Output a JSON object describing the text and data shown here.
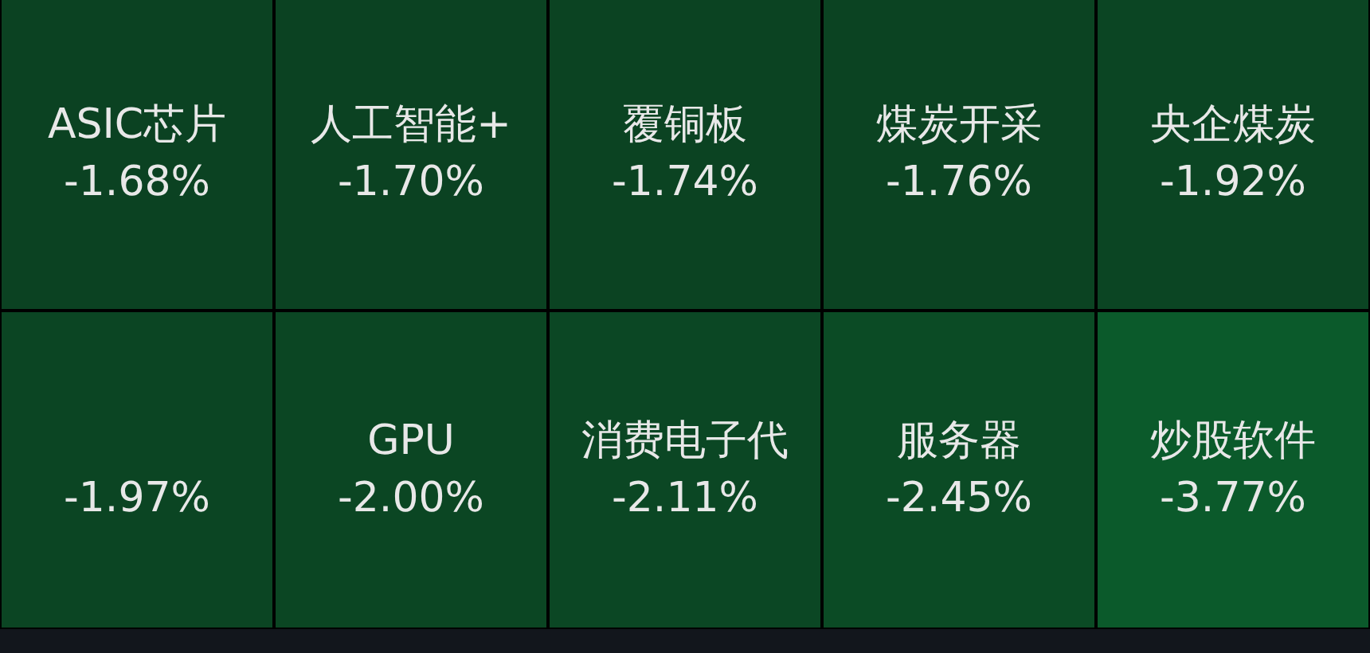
{
  "chart_data": {
    "type": "other",
    "categories": [
      "ASIC芯片",
      "人工智能+",
      "覆铜板",
      "煤炭开采",
      "央企煤炭",
      null,
      "GPU",
      "消费电子代",
      "服务器",
      "炒股软件"
    ],
    "values": [
      -1.68,
      -1.7,
      -1.74,
      -1.76,
      -1.92,
      -1.97,
      -2.0,
      -2.11,
      -2.45,
      -3.77
    ],
    "value_labels": [
      "-1.68%",
      "-1.70%",
      "-1.74%",
      "-1.76%",
      "-1.92%",
      "-1.97%",
      "-2.00%",
      "-2.11%",
      "-2.45%",
      "-3.77%"
    ]
  }
}
